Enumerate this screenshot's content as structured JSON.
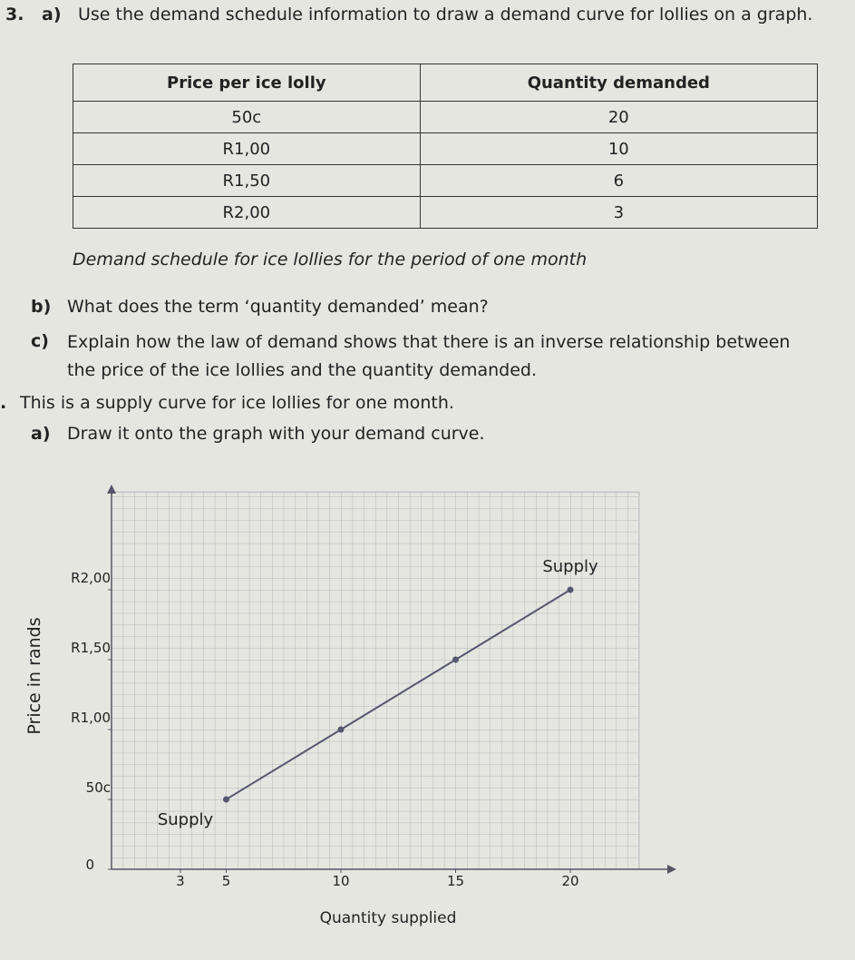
{
  "question3": {
    "number": "3.",
    "part_a": {
      "label": "a)",
      "text": "Use the demand schedule information to draw a demand curve for lollies on a graph."
    },
    "table": {
      "header": [
        "Price per ice lolly",
        "Quantity demanded"
      ],
      "rows": [
        [
          "50c",
          "20"
        ],
        [
          "R1,00",
          "10"
        ],
        [
          "R1,50",
          "6"
        ],
        [
          "R2,00",
          "3"
        ]
      ],
      "caption": "Demand schedule for ice lollies for the period of one month"
    },
    "part_b": {
      "label": "b)",
      "text": "What does the term ‘quantity demanded’ mean?"
    },
    "part_c": {
      "label": "c)",
      "text": "Explain how the law of demand shows that there is an inverse relationship between the price of the ice lollies and the quantity demanded."
    }
  },
  "question4": {
    "number": ".",
    "text": "This is a supply curve for ice lollies for one month.",
    "part_a": {
      "label": "a)",
      "text": "Draw it onto the graph with your demand curve."
    }
  },
  "chart_data": {
    "type": "line",
    "x_label": "Quantity supplied",
    "y_label": "Price in rands",
    "x": [
      5,
      10,
      15,
      20
    ],
    "series": [
      {
        "name": "Supply",
        "color": "#56576f",
        "values": [
          0.5,
          1,
          1.5,
          2
        ]
      }
    ],
    "annotations": [
      "Supply"
    ],
    "xlim": [
      0,
      23
    ],
    "ylim": [
      0,
      2.7
    ],
    "xticks": [
      3,
      5,
      10,
      15,
      20
    ],
    "yticks": [
      {
        "value": 0,
        "label": "0"
      },
      {
        "value": 0.5,
        "label": "50c"
      },
      {
        "value": 1,
        "label": "R1,00"
      },
      {
        "value": 1.5,
        "label": "R1,50"
      },
      {
        "value": 2,
        "label": "R2,00"
      }
    ],
    "grid": true
  }
}
